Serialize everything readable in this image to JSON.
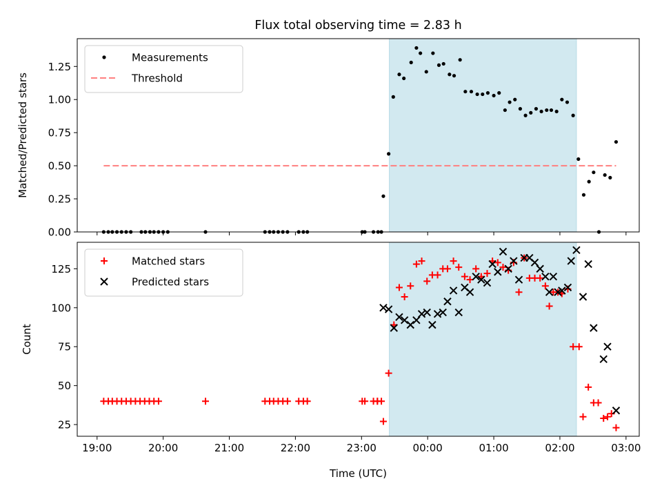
{
  "chart_data": {
    "type": "scatter",
    "title": "Flux total observing time = 2.83 h",
    "xlabel": "Time (UTC)",
    "xlim": [
      -5.3,
      3.2
    ],
    "x_units": "hours relative to 00:00 UTC",
    "xticks": [
      {
        "value": -5,
        "label": "19:00"
      },
      {
        "value": -4,
        "label": "20:00"
      },
      {
        "value": -3,
        "label": "21:00"
      },
      {
        "value": -2,
        "label": "22:00"
      },
      {
        "value": -1,
        "label": "23:00"
      },
      {
        "value": 0,
        "label": "00:00"
      },
      {
        "value": 1,
        "label": "01:00"
      },
      {
        "value": 2,
        "label": "02:00"
      },
      {
        "value": 3,
        "label": "03:00"
      }
    ],
    "shaded_interval": {
      "start": -0.58,
      "end": 2.25,
      "color": "#d2e9f0"
    },
    "panels": [
      {
        "id": "ratio",
        "ylabel": "Matched/Predicted stars",
        "ylim": [
          0,
          1.46
        ],
        "yticks": [
          {
            "value": 0,
            "label": "0.00"
          },
          {
            "value": 0.25,
            "label": "0.25"
          },
          {
            "value": 0.5,
            "label": "0.50"
          },
          {
            "value": 0.75,
            "label": "0.75"
          },
          {
            "value": 1.0,
            "label": "1.00"
          },
          {
            "value": 1.25,
            "label": "1.25"
          }
        ],
        "legend": {
          "position": "top-left",
          "entries": [
            {
              "name": "Measurements",
              "marker": "dot",
              "color": "#000000"
            },
            {
              "name": "Threshold",
              "marker": "dashed-line",
              "color": "#ff7f7f"
            }
          ]
        },
        "threshold": {
          "name": "Threshold",
          "y": 0.5,
          "x_range": [
            -4.9,
            2.85
          ],
          "color": "#ff7f7f"
        },
        "series": [
          {
            "name": "Measurements",
            "marker": "dot",
            "color": "#000000",
            "points": [
              [
                -4.9,
                0
              ],
              [
                -4.83,
                0
              ],
              [
                -4.77,
                0
              ],
              [
                -4.7,
                0
              ],
              [
                -4.63,
                0
              ],
              [
                -4.56,
                0
              ],
              [
                -4.49,
                0
              ],
              [
                -4.33,
                0
              ],
              [
                -4.27,
                0
              ],
              [
                -4.2,
                0
              ],
              [
                -4.14,
                0
              ],
              [
                -4.07,
                0
              ],
              [
                -4.0,
                0
              ],
              [
                -3.93,
                0
              ],
              [
                -3.36,
                0
              ],
              [
                -2.46,
                0
              ],
              [
                -2.39,
                0
              ],
              [
                -2.33,
                0
              ],
              [
                -2.26,
                0
              ],
              [
                -2.19,
                0
              ],
              [
                -2.12,
                0
              ],
              [
                -1.95,
                0
              ],
              [
                -1.88,
                0
              ],
              [
                -1.82,
                0
              ],
              [
                -0.99,
                0
              ],
              [
                -0.95,
                0
              ],
              [
                -0.82,
                0
              ],
              [
                -0.75,
                0
              ],
              [
                -0.7,
                0
              ],
              [
                -0.67,
                0.27
              ],
              [
                -0.59,
                0.59
              ],
              [
                -0.52,
                1.02
              ],
              [
                -0.43,
                1.19
              ],
              [
                -0.36,
                1.16
              ],
              [
                -0.25,
                1.28
              ],
              [
                -0.17,
                1.39
              ],
              [
                -0.11,
                1.35
              ],
              [
                -0.02,
                1.21
              ],
              [
                0.08,
                1.35
              ],
              [
                0.17,
                1.26
              ],
              [
                0.24,
                1.27
              ],
              [
                0.33,
                1.19
              ],
              [
                0.4,
                1.18
              ],
              [
                0.49,
                1.3
              ],
              [
                0.57,
                1.06
              ],
              [
                0.66,
                1.06
              ],
              [
                0.75,
                1.04
              ],
              [
                0.83,
                1.04
              ],
              [
                0.91,
                1.05
              ],
              [
                1.0,
                1.03
              ],
              [
                1.08,
                1.05
              ],
              [
                1.17,
                0.92
              ],
              [
                1.24,
                0.98
              ],
              [
                1.32,
                1.0
              ],
              [
                1.4,
                0.93
              ],
              [
                1.48,
                0.88
              ],
              [
                1.56,
                0.9
              ],
              [
                1.64,
                0.93
              ],
              [
                1.72,
                0.91
              ],
              [
                1.8,
                0.92
              ],
              [
                1.87,
                0.92
              ],
              [
                1.95,
                0.91
              ],
              [
                2.03,
                1.0
              ],
              [
                2.11,
                0.98
              ],
              [
                2.2,
                0.88
              ],
              [
                2.28,
                0.55
              ],
              [
                2.36,
                0.28
              ],
              [
                2.44,
                0.38
              ],
              [
                2.51,
                0.45
              ],
              [
                2.59,
                0.0
              ],
              [
                2.68,
                0.43
              ],
              [
                2.76,
                0.41
              ],
              [
                2.85,
                0.68
              ]
            ]
          }
        ]
      },
      {
        "id": "counts",
        "ylabel": "Count",
        "ylim": [
          17.5,
          142
        ],
        "yticks": [
          {
            "value": 25,
            "label": "25"
          },
          {
            "value": 50,
            "label": "50"
          },
          {
            "value": 75,
            "label": "75"
          },
          {
            "value": 100,
            "label": "100"
          },
          {
            "value": 125,
            "label": "125"
          }
        ],
        "legend": {
          "position": "top-left",
          "entries": [
            {
              "name": "Matched stars",
              "marker": "plus",
              "color": "#ff0000"
            },
            {
              "name": "Predicted stars",
              "marker": "x",
              "color": "#000000"
            }
          ]
        },
        "series": [
          {
            "name": "Matched stars",
            "marker": "plus",
            "color": "#ff0000",
            "points": [
              [
                -4.9,
                40
              ],
              [
                -4.83,
                40
              ],
              [
                -4.77,
                40
              ],
              [
                -4.7,
                40
              ],
              [
                -4.63,
                40
              ],
              [
                -4.56,
                40
              ],
              [
                -4.49,
                40
              ],
              [
                -4.42,
                40
              ],
              [
                -4.35,
                40
              ],
              [
                -4.28,
                40
              ],
              [
                -4.21,
                40
              ],
              [
                -4.14,
                40
              ],
              [
                -4.07,
                40
              ],
              [
                -3.36,
                40
              ],
              [
                -2.46,
                40
              ],
              [
                -2.39,
                40
              ],
              [
                -2.33,
                40
              ],
              [
                -2.26,
                40
              ],
              [
                -2.19,
                40
              ],
              [
                -2.12,
                40
              ],
              [
                -1.95,
                40
              ],
              [
                -1.88,
                40
              ],
              [
                -1.82,
                40
              ],
              [
                -0.99,
                40
              ],
              [
                -0.95,
                40
              ],
              [
                -0.82,
                40
              ],
              [
                -0.76,
                40
              ],
              [
                -0.7,
                40
              ],
              [
                -0.76,
                40
              ],
              [
                -0.67,
                27
              ],
              [
                -0.59,
                58
              ],
              [
                -0.51,
                89
              ],
              [
                -0.43,
                113
              ],
              [
                -0.35,
                107
              ],
              [
                -0.26,
                114
              ],
              [
                -0.17,
                128
              ],
              [
                -0.09,
                130
              ],
              [
                -0.01,
                117
              ],
              [
                0.07,
                121
              ],
              [
                0.15,
                121
              ],
              [
                0.23,
                125
              ],
              [
                0.3,
                125
              ],
              [
                0.39,
                130
              ],
              [
                0.47,
                126
              ],
              [
                0.56,
                120
              ],
              [
                0.64,
                118
              ],
              [
                0.73,
                125
              ],
              [
                0.81,
                120
              ],
              [
                0.9,
                122
              ],
              [
                0.98,
                130
              ],
              [
                1.06,
                129
              ],
              [
                1.14,
                126
              ],
              [
                1.22,
                124
              ],
              [
                1.3,
                129
              ],
              [
                1.38,
                110
              ],
              [
                1.46,
                132
              ],
              [
                1.54,
                119
              ],
              [
                1.62,
                119
              ],
              [
                1.7,
                119
              ],
              [
                1.78,
                114
              ],
              [
                1.84,
                101
              ],
              [
                1.9,
                110
              ],
              [
                1.97,
                110
              ],
              [
                2.03,
                109
              ],
              [
                2.12,
                112
              ],
              [
                2.2,
                75
              ],
              [
                2.29,
                75
              ],
              [
                2.35,
                30
              ],
              [
                2.43,
                49
              ],
              [
                2.51,
                39
              ],
              [
                2.58,
                39
              ],
              [
                2.66,
                29
              ],
              [
                2.72,
                30
              ],
              [
                2.78,
                32
              ],
              [
                2.85,
                23
              ]
            ]
          },
          {
            "name": "Predicted stars",
            "marker": "x",
            "color": "#000000",
            "points": [
              [
                -0.67,
                100
              ],
              [
                -0.59,
                99
              ],
              [
                -0.51,
                87
              ],
              [
                -0.43,
                94
              ],
              [
                -0.35,
                92
              ],
              [
                -0.26,
                89
              ],
              [
                -0.17,
                92
              ],
              [
                -0.09,
                96
              ],
              [
                -0.01,
                97
              ],
              [
                0.07,
                89
              ],
              [
                0.15,
                96
              ],
              [
                0.23,
                97
              ],
              [
                0.3,
                104
              ],
              [
                0.39,
                111
              ],
              [
                0.47,
                97
              ],
              [
                0.56,
                113
              ],
              [
                0.64,
                110
              ],
              [
                0.73,
                120
              ],
              [
                0.81,
                118
              ],
              [
                0.9,
                116
              ],
              [
                0.98,
                128
              ],
              [
                1.06,
                123
              ],
              [
                1.14,
                136
              ],
              [
                1.22,
                125
              ],
              [
                1.3,
                130
              ],
              [
                1.38,
                118
              ],
              [
                1.46,
                132
              ],
              [
                1.54,
                132
              ],
              [
                1.62,
                129
              ],
              [
                1.7,
                125
              ],
              [
                1.78,
                120
              ],
              [
                1.84,
                110
              ],
              [
                1.9,
                120
              ],
              [
                1.97,
                110
              ],
              [
                2.03,
                111
              ],
              [
                2.12,
                113
              ],
              [
                2.17,
                130
              ],
              [
                2.25,
                137
              ],
              [
                2.35,
                107
              ],
              [
                2.43,
                128
              ],
              [
                2.51,
                87
              ],
              [
                2.66,
                67
              ],
              [
                2.72,
                75
              ],
              [
                2.85,
                34
              ]
            ]
          }
        ]
      }
    ]
  }
}
